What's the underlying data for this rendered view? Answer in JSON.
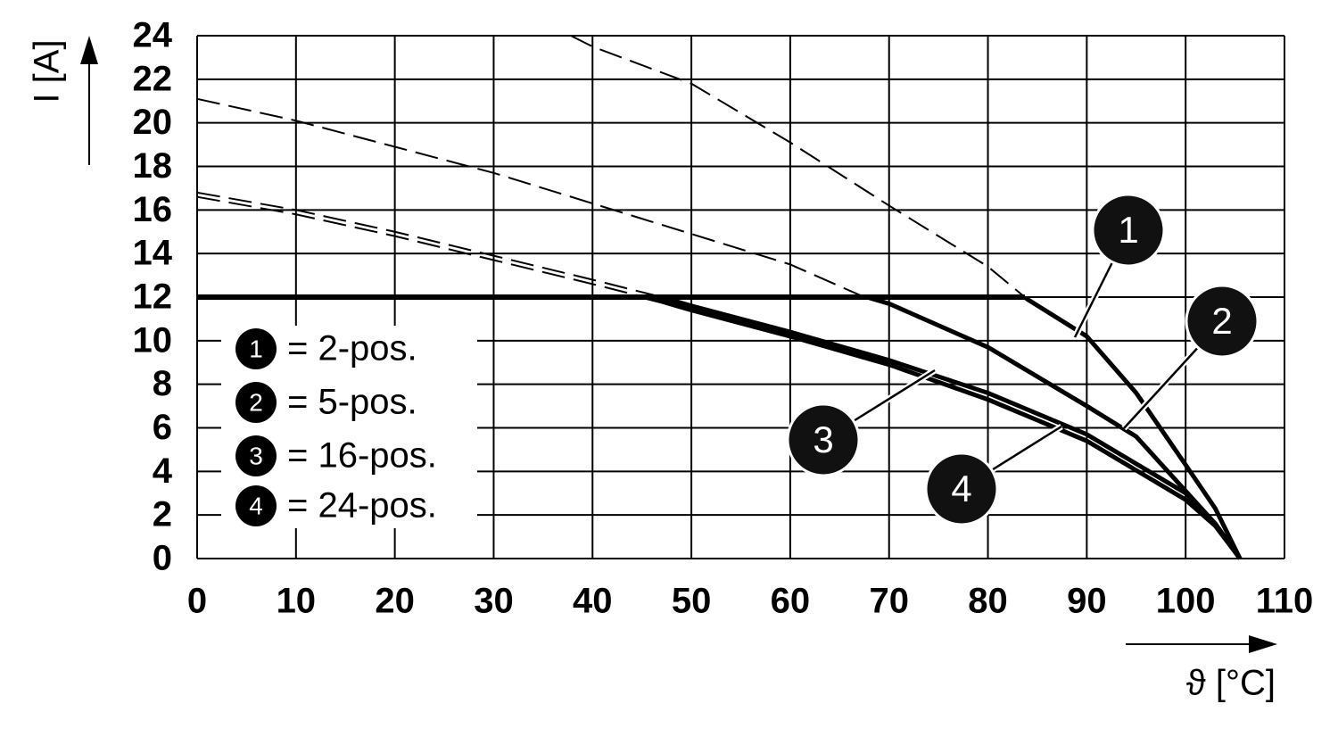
{
  "chart_data": {
    "type": "line",
    "x_label": "ϑ [°C]",
    "y_label": "I [A]",
    "xlim": [
      0,
      110
    ],
    "xticks": [
      0,
      10,
      20,
      30,
      40,
      50,
      60,
      70,
      80,
      90,
      100,
      110
    ],
    "ylim": [
      0,
      24
    ],
    "yticks": [
      0,
      2,
      4,
      6,
      8,
      10,
      12,
      14,
      16,
      18,
      20,
      22,
      24
    ],
    "grid": true,
    "rated_current": 12,
    "series": [
      {
        "name": "= 2-pos.",
        "badge": "1",
        "color": "#000000",
        "x": [
          37.8,
          40,
          50,
          60,
          70,
          80,
          84,
          90,
          95,
          100,
          103,
          105.5
        ],
        "values": [
          24,
          23.5,
          21.8,
          19.1,
          16.2,
          13.4,
          11.9,
          10.2,
          7.6,
          4.3,
          2.3,
          0
        ]
      },
      {
        "name": "= 5-pos.",
        "badge": "2",
        "color": "#000000",
        "x": [
          0,
          10,
          20,
          30,
          40,
          50,
          60,
          67,
          70,
          80,
          90,
          95,
          100,
          103,
          105.5
        ],
        "values": [
          21.1,
          20.1,
          18.9,
          17.7,
          16.3,
          14.9,
          13.5,
          12.1,
          11.7,
          9.7,
          7,
          5.6,
          3.1,
          1.6,
          0
        ]
      },
      {
        "name": "= 16-pos.",
        "badge": "3",
        "color": "#000000",
        "x": [
          0,
          10,
          20,
          30,
          40,
          47,
          50,
          60,
          70,
          80,
          90,
          100,
          103,
          105.5
        ],
        "values": [
          16.8,
          16,
          15,
          13.9,
          12.8,
          12,
          11.6,
          10.4,
          9.1,
          7.6,
          5.7,
          3,
          1.6,
          0
        ]
      },
      {
        "name": "= 24-pos.",
        "badge": "4",
        "color": "#000000",
        "x": [
          0,
          10,
          20,
          30,
          40,
          47,
          50,
          60,
          70,
          80,
          90,
          100,
          103,
          105.5
        ],
        "values": [
          16.6,
          15.8,
          14.8,
          13.7,
          12.6,
          11.8,
          11.4,
          10.2,
          8.9,
          7.3,
          5.4,
          2.7,
          1.5,
          0
        ]
      }
    ]
  }
}
